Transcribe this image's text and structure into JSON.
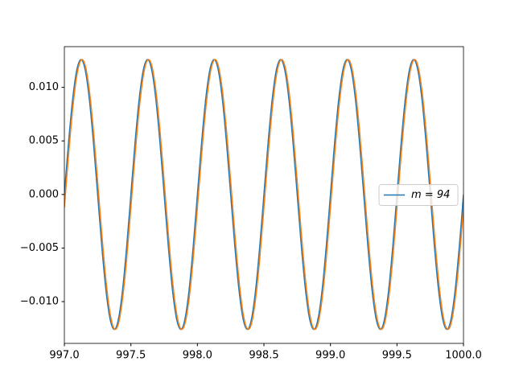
{
  "chart_data": {
    "type": "line",
    "x": [
      997,
      997.03125,
      997.0625,
      997.09375,
      997.125,
      997.15625,
      997.1875,
      997.21875,
      997.25,
      997.28125,
      997.3125,
      997.34375,
      997.375,
      997.40625,
      997.4375,
      997.46875,
      997.5,
      997.53125,
      997.5625,
      997.59375,
      997.625,
      997.65625,
      997.6875,
      997.71875,
      997.75,
      997.78125,
      997.8125,
      997.84375,
      997.875,
      997.90625,
      997.9375,
      997.96875,
      998,
      998.03125,
      998.0625,
      998.09375,
      998.125,
      998.15625,
      998.1875,
      998.21875,
      998.25,
      998.28125,
      998.3125,
      998.34375,
      998.375,
      998.40625,
      998.4375,
      998.46875,
      998.5,
      998.53125,
      998.5625,
      998.59375,
      998.625,
      998.65625,
      998.6875,
      998.71875,
      998.75,
      998.78125,
      998.8125,
      998.84375,
      998.875,
      998.90625,
      998.9375,
      998.96875,
      999,
      999.03125,
      999.0625,
      999.09375,
      999.125,
      999.15625,
      999.1875,
      999.21875,
      999.25,
      999.28125,
      999.3125,
      999.34375,
      999.375,
      999.40625,
      999.4375,
      999.46875,
      999.5,
      999.53125,
      999.5625,
      999.59375,
      999.625,
      999.65625,
      999.6875,
      999.71875,
      999.75,
      999.78125,
      999.8125,
      999.84375,
      999.875,
      999.90625,
      999.9375,
      999.96875,
      1000
    ],
    "series": [
      {
        "name": "m = 94",
        "color": "#1f77b4",
        "values": [
          0,
          0.00482,
          0.00891,
          0.01164,
          0.0126,
          0.01164,
          0.00891,
          0.00482,
          0,
          -0.00482,
          -0.00891,
          -0.01164,
          -0.0126,
          -0.01164,
          -0.00891,
          -0.00482,
          0,
          0.00482,
          0.00891,
          0.01164,
          0.0126,
          0.01164,
          0.00891,
          0.00482,
          0,
          -0.00482,
          -0.00891,
          -0.01164,
          -0.0126,
          -0.01164,
          -0.00891,
          -0.00482,
          0,
          0.00482,
          0.00891,
          0.01164,
          0.0126,
          0.01164,
          0.00891,
          0.00482,
          0,
          -0.00482,
          -0.00891,
          -0.01164,
          -0.0126,
          -0.01164,
          -0.00891,
          -0.00482,
          0,
          0.00482,
          0.00891,
          0.01164,
          0.0126,
          0.01164,
          0.00891,
          0.00482,
          0,
          -0.00482,
          -0.00891,
          -0.01164,
          -0.0126,
          -0.01164,
          -0.00891,
          -0.00482,
          0,
          0.00482,
          0.00891,
          0.01164,
          0.0126,
          0.01164,
          0.00891,
          0.00482,
          0,
          -0.00482,
          -0.00891,
          -0.01164,
          -0.0126,
          -0.01164,
          -0.00891,
          -0.00482,
          0,
          0.00482,
          0.00891,
          0.01164,
          0.0126,
          0.01164,
          0.00891,
          0.00482,
          0,
          -0.00482,
          -0.00891,
          -0.01164,
          -0.0126,
          -0.01164,
          -0.00891,
          -0.00482,
          0
        ]
      },
      {
        "color": "#ff7f0e",
        "values": [
          -0.00123,
          0.00366,
          0.00799,
          0.01111,
          0.01254,
          0.01206,
          0.00974,
          0.00594,
          0.00123,
          -0.00366,
          -0.00799,
          -0.01111,
          -0.01254,
          -0.01206,
          -0.00974,
          -0.00594,
          -0.00123,
          0.00366,
          0.00799,
          0.01111,
          0.01254,
          0.01206,
          0.00974,
          0.00594,
          0.00123,
          -0.00366,
          -0.00799,
          -0.01111,
          -0.01254,
          -0.01206,
          -0.00974,
          -0.00594,
          -0.00123,
          0.00366,
          0.00799,
          0.01111,
          0.01254,
          0.01206,
          0.00974,
          0.00594,
          0.00123,
          -0.00366,
          -0.00799,
          -0.01111,
          -0.01254,
          -0.01206,
          -0.00974,
          -0.00594,
          -0.00123,
          0.00366,
          0.00799,
          0.01111,
          0.01254,
          0.01206,
          0.00974,
          0.00594,
          0.00123,
          -0.00366,
          -0.00799,
          -0.01111,
          -0.01254,
          -0.01206,
          -0.00974,
          -0.00594,
          -0.00123,
          0.00366,
          0.00799,
          0.01111,
          0.01254,
          0.01206,
          0.00974,
          0.00594,
          0.00123,
          -0.00366,
          -0.00799,
          -0.01111,
          -0.01254,
          -0.01206,
          -0.00974,
          -0.00594,
          -0.00123,
          0.00366,
          0.00799,
          0.01111,
          0.01254,
          0.01206,
          0.00974,
          0.00594,
          0.00123,
          -0.00366,
          -0.00799,
          -0.01111,
          -0.01254,
          -0.01206,
          -0.00974,
          -0.00594,
          -0.00123
        ]
      }
    ],
    "xlim": [
      997,
      1000
    ],
    "xticks": [
      {
        "value": 997,
        "label": "997.0"
      },
      {
        "value": 997.5,
        "label": "997.5"
      },
      {
        "value": 998,
        "label": "998.0"
      },
      {
        "value": 998.5,
        "label": "998.5"
      },
      {
        "value": 999,
        "label": "999.0"
      },
      {
        "value": 999.5,
        "label": "999.5"
      },
      {
        "value": 1000,
        "label": "1000.0"
      }
    ],
    "ylim": [
      -0.0139,
      0.0138
    ],
    "yticks": [
      {
        "value": -0.01,
        "label": "−0.010"
      },
      {
        "value": -0.005,
        "label": "−0.005"
      },
      {
        "value": 0,
        "label": "0.000"
      },
      {
        "value": 0.005,
        "label": "0.005"
      },
      {
        "value": 0.01,
        "label": "0.010"
      }
    ],
    "legend": "center right"
  }
}
